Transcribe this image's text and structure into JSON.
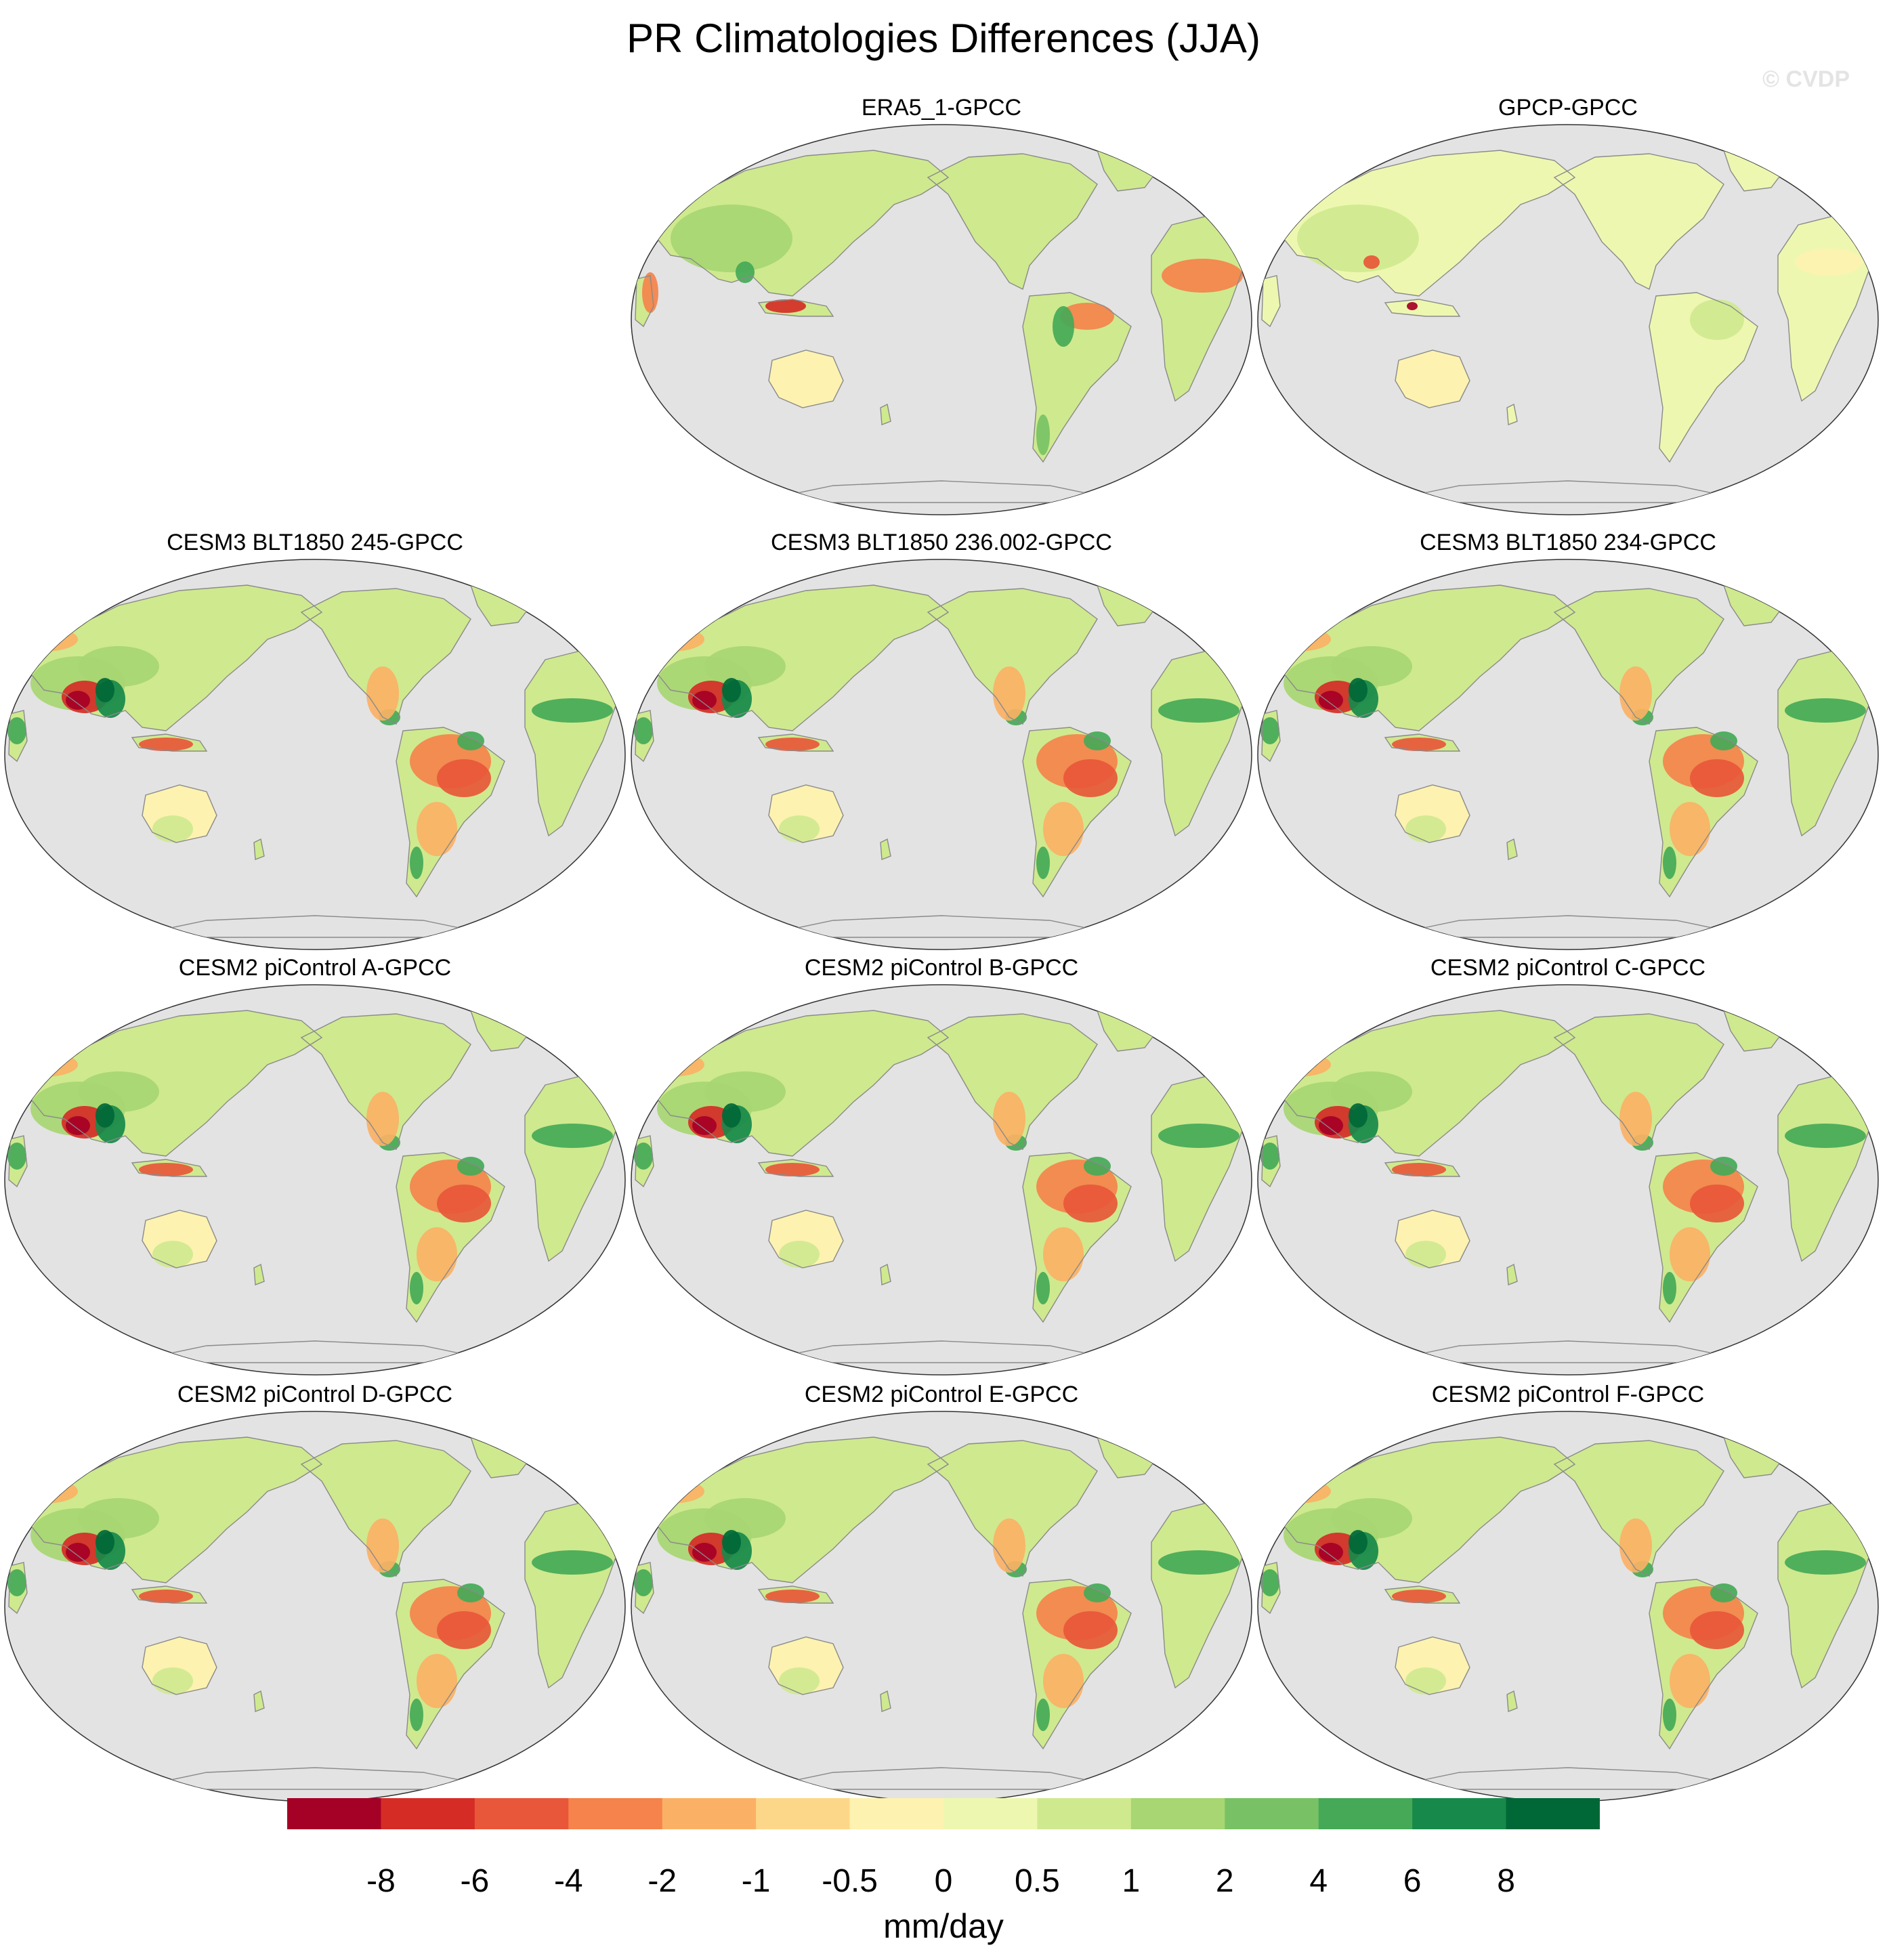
{
  "figure": {
    "title": "PR Climatologies Differences (JJA)",
    "watermark": "© CVDP"
  },
  "panels": [
    {
      "title": "ERA5_1-GPCC",
      "pattern": "reanalysis"
    },
    {
      "title": "GPCP-GPCC",
      "pattern": "obs"
    },
    {
      "title": "CESM3 BLT1850 245-GPCC",
      "pattern": "model"
    },
    {
      "title": "CESM3 BLT1850 236.002-GPCC",
      "pattern": "model"
    },
    {
      "title": "CESM3 BLT1850 234-GPCC",
      "pattern": "model"
    },
    {
      "title": "CESM2 piControl A-GPCC",
      "pattern": "model"
    },
    {
      "title": "CESM2 piControl B-GPCC",
      "pattern": "model"
    },
    {
      "title": "CESM2 piControl C-GPCC",
      "pattern": "model"
    },
    {
      "title": "CESM2 piControl D-GPCC",
      "pattern": "model"
    },
    {
      "title": "CESM2 piControl E-GPCC",
      "pattern": "model"
    },
    {
      "title": "CESM2 piControl F-GPCC",
      "pattern": "model"
    }
  ],
  "colorbar": {
    "units": "mm/day",
    "tick_labels": [
      "-8",
      "-6",
      "-4",
      "-2",
      "-1",
      "-0.5",
      "0",
      "0.5",
      "1",
      "2",
      "4",
      "6",
      "8"
    ],
    "colors": [
      "#a50026",
      "#d52c26",
      "#e8573a",
      "#f5834b",
      "#fbb165",
      "#fdd789",
      "#fdf2b0",
      "#eef7b0",
      "#cfe98f",
      "#a7d672",
      "#78c265",
      "#45a957",
      "#17894a",
      "#006837"
    ]
  },
  "map_colors": {
    "ocean": "#e3e3e3",
    "coast": "#8a8a8a"
  }
}
